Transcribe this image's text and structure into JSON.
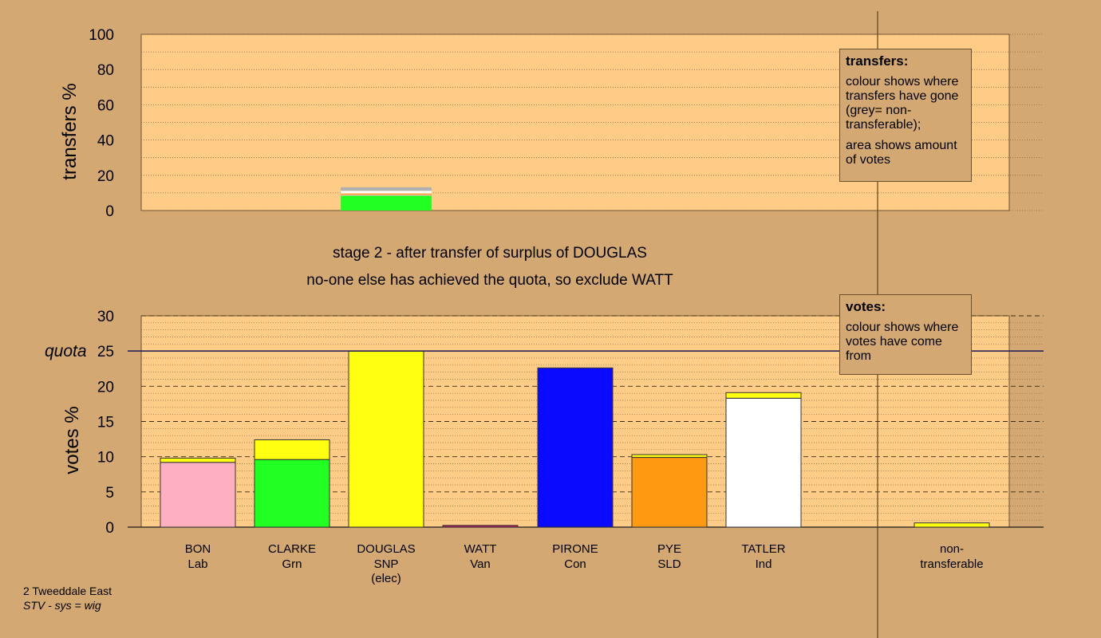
{
  "top_chart": {
    "ylabel": "transfers %",
    "ticks": [
      0,
      20,
      40,
      60,
      80,
      100
    ],
    "ylim": [
      0,
      100
    ],
    "source_column": 2,
    "transfer_segments": [
      {
        "to": "CLARKE",
        "value": 8.5,
        "color": "#22ff22"
      },
      {
        "to": "BON",
        "value": 0.6,
        "color": "#ffb0c0"
      },
      {
        "to": "PYE",
        "value": 0.6,
        "color": "#ff9912"
      },
      {
        "to": "TATLER",
        "value": 1.5,
        "color": "#ffffff"
      },
      {
        "to": "non-transferable",
        "value": 2.0,
        "color": "#b0b0b0"
      }
    ]
  },
  "stage": {
    "line1": "stage 2 - after transfer of surplus of DOUGLAS",
    "line2": "no-one else has achieved the quota, so exclude WATT"
  },
  "legends": {
    "transfers": {
      "title": "transfers:",
      "p1": "colour shows where transfers have gone (grey= non-transferable);",
      "p2": "area shows amount of votes"
    },
    "votes": {
      "title": "votes:",
      "p1": "colour shows where votes have come from"
    }
  },
  "chart_data": {
    "type": "bar",
    "ylabel": "votes %",
    "ylim": [
      0,
      30
    ],
    "ticks": [
      0,
      5,
      10,
      15,
      20,
      25,
      30
    ],
    "quota": 25,
    "quota_label": "quota",
    "categories": [
      {
        "name": "BON",
        "party": "Lab",
        "note": "",
        "segments": [
          {
            "from": "BON",
            "value": 9.2,
            "color": "#ffb0c0"
          },
          {
            "from": "DOUGLAS",
            "value": 0.6,
            "color": "#ffff11"
          }
        ]
      },
      {
        "name": "CLARKE",
        "party": "Grn",
        "note": "",
        "segments": [
          {
            "from": "CLARKE",
            "value": 9.6,
            "color": "#22ff22"
          },
          {
            "from": "DOUGLAS",
            "value": 2.8,
            "color": "#ffff11"
          }
        ]
      },
      {
        "name": "DOUGLAS",
        "party": "SNP",
        "note": "(elec)",
        "segments": [
          {
            "from": "DOUGLAS",
            "value": 25.0,
            "color": "#ffff11"
          }
        ]
      },
      {
        "name": "WATT",
        "party": "Van",
        "note": "",
        "segments": [
          {
            "from": "WATT",
            "value": 0.25,
            "color": "#c02060"
          }
        ]
      },
      {
        "name": "PIRONE",
        "party": "Con",
        "note": "",
        "segments": [
          {
            "from": "PIRONE",
            "value": 22.6,
            "color": "#0a0aff"
          }
        ]
      },
      {
        "name": "PYE",
        "party": "SLD",
        "note": "",
        "segments": [
          {
            "from": "PYE",
            "value": 9.9,
            "color": "#ff9912"
          },
          {
            "from": "DOUGLAS",
            "value": 0.4,
            "color": "#ffff11"
          }
        ]
      },
      {
        "name": "TATLER",
        "party": "Ind",
        "note": "",
        "segments": [
          {
            "from": "TATLER",
            "value": 18.3,
            "color": "#ffffff"
          },
          {
            "from": "DOUGLAS",
            "value": 0.8,
            "color": "#ffff11"
          }
        ]
      }
    ],
    "nontransferable": {
      "label1": "non-",
      "label2": "transferable",
      "value": 0.6,
      "color": "#ffff11"
    }
  },
  "footer": {
    "line1": "2 Tweeddale East",
    "line2": "STV - sys = wig"
  }
}
